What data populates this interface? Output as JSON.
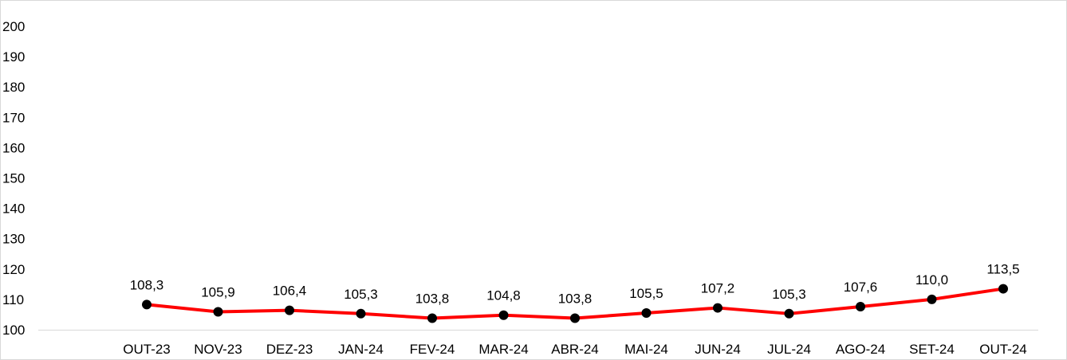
{
  "chart_data": {
    "type": "line",
    "title": "",
    "xlabel": "",
    "ylabel": "",
    "categories": [
      "OUT-23",
      "NOV-23",
      "DEZ-23",
      "JAN-24",
      "FEV-24",
      "MAR-24",
      "ABR-24",
      "MAI-24",
      "JUN-24",
      "JUL-24",
      "AGO-24",
      "SET-24",
      "OUT-24"
    ],
    "values": [
      108.3,
      105.9,
      106.4,
      105.3,
      103.8,
      104.8,
      103.8,
      105.5,
      107.2,
      105.3,
      107.6,
      110.0,
      113.5
    ],
    "value_labels": [
      "108,3",
      "105,9",
      "106,4",
      "105,3",
      "103,8",
      "104,8",
      "103,8",
      "105,5",
      "107,2",
      "105,3",
      "107,6",
      "110,0",
      "113,5"
    ],
    "ylim": [
      100,
      200
    ],
    "yticks": [
      100,
      110,
      120,
      130,
      140,
      150,
      160,
      170,
      180,
      190,
      200
    ],
    "ytick_labels": [
      "100",
      "110",
      "120",
      "130",
      "140",
      "150",
      "160",
      "170",
      "180",
      "190",
      "200"
    ],
    "grid": false,
    "line_color": "#ff0000",
    "marker_color": "#000000",
    "axis_color": "#d9d9d9"
  }
}
